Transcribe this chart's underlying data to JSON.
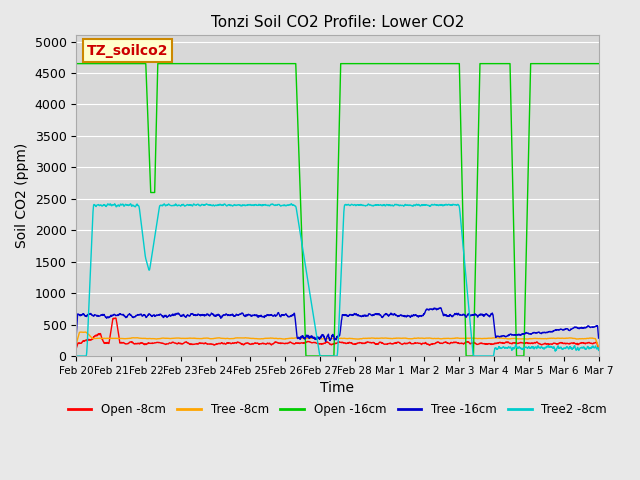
{
  "title": "Tonzi Soil CO2 Profile: Lower CO2",
  "xlabel": "Time",
  "ylabel": "Soil CO2 (ppm)",
  "ylim": [
    0,
    5100
  ],
  "yticks": [
    0,
    500,
    1000,
    1500,
    2000,
    2500,
    3000,
    3500,
    4000,
    4500,
    5000
  ],
  "bg_color": "#e8e8e8",
  "plot_bg_color": "#d8d8d8",
  "legend_label": "TZ_soilco2",
  "legend_box_color": "#ffffcc",
  "legend_box_edge": "#cc8800",
  "series_colors": {
    "open8": "#ff0000",
    "tree8": "#ffa500",
    "open16": "#00cc00",
    "tree16": "#0000cc",
    "tree2_8": "#00cccc"
  },
  "series_labels": [
    "Open -8cm",
    "Tree -8cm",
    "Open -16cm",
    "Tree -16cm",
    "Tree2 -8cm"
  ],
  "xtick_labels": [
    "Feb 20",
    "Feb 21",
    "Feb 22",
    "Feb 23",
    "Feb 24",
    "Feb 25",
    "Feb 26",
    "Feb 27",
    "Feb 28",
    "Mar 1",
    "Mar 2",
    "Mar 3",
    "Mar 4",
    "Mar 5",
    "Mar 6",
    "Mar 7"
  ],
  "grid_color": "#ffffff",
  "linewidth": 1.0
}
